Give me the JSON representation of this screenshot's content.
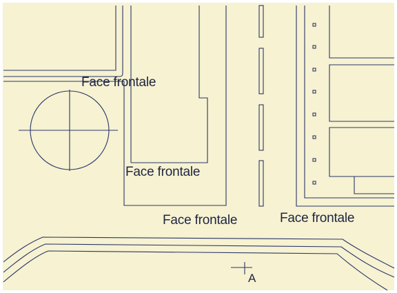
{
  "labels": {
    "face_top_left": "Face frontale",
    "face_middle": "Face frontale",
    "face_bottom_center": "Face frontale",
    "face_bottom_right": "Face frontale",
    "marker": "A"
  },
  "colors": {
    "paper": "#f6f2d2",
    "frame": "#ffffff",
    "ink": "#2a3566",
    "text": "#1f2440"
  }
}
